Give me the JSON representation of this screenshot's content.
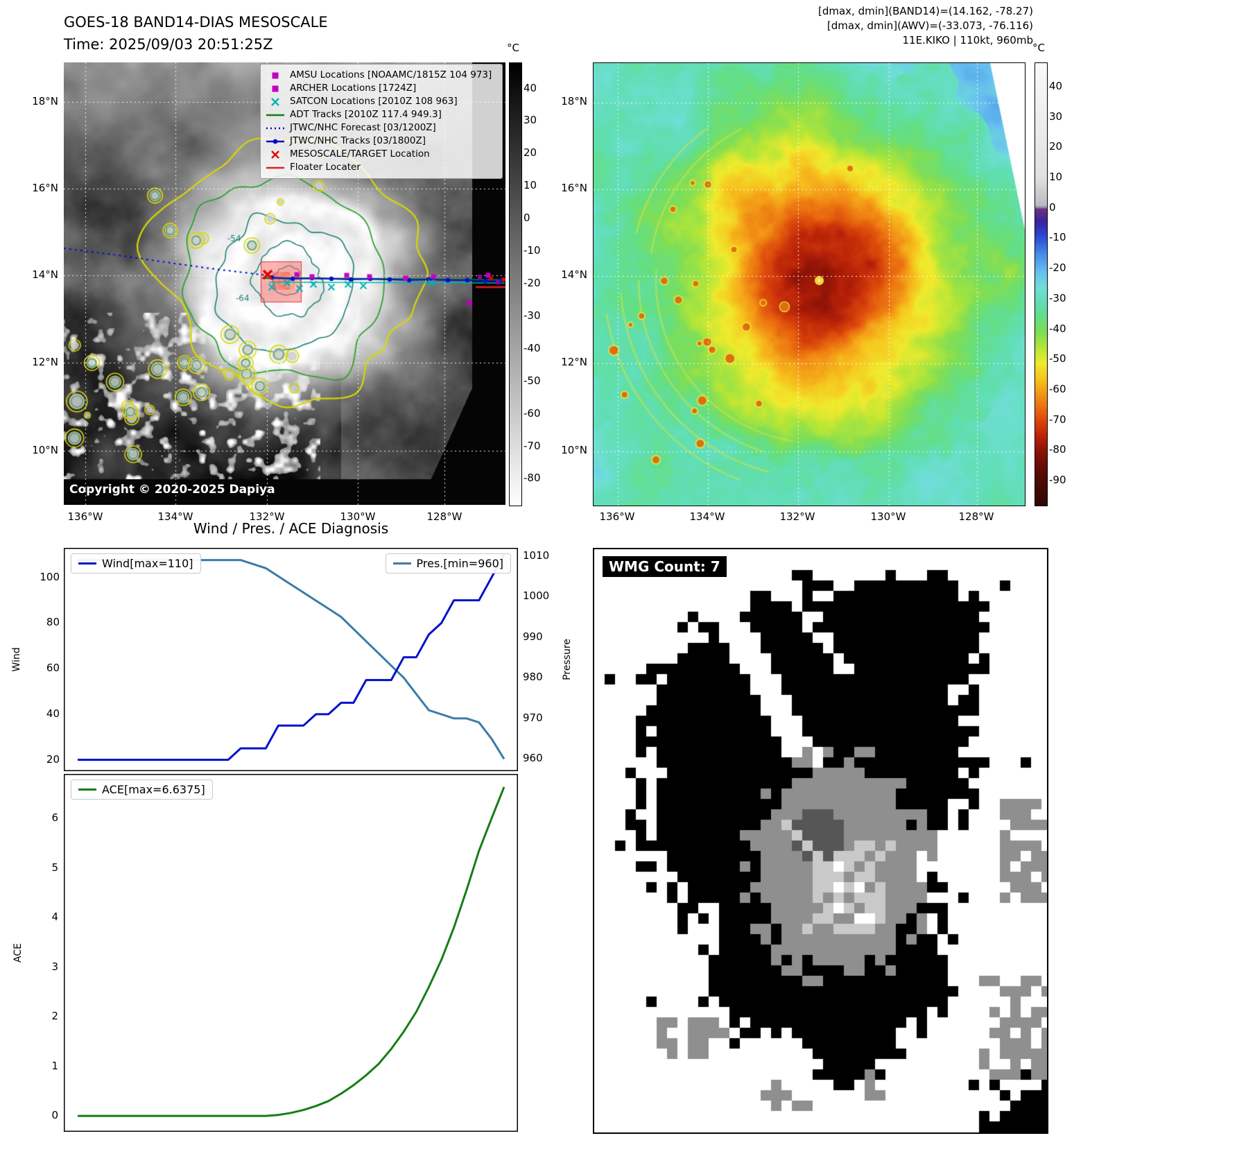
{
  "panel1": {
    "title": "GOES-18 BAND14-DIAS MESOSCALE",
    "time_line": "Time: 2025/09/03 20:51:25Z",
    "copyright": "Copyright © 2020-2025 Dapiya",
    "colorbar_unit": "°C",
    "colorbar_ticks": [
      40,
      30,
      20,
      10,
      0,
      -10,
      -20,
      -30,
      -40,
      -50,
      -60,
      -70,
      -80
    ],
    "lat_ticks": [
      "18°N",
      "16°N",
      "14°N",
      "12°N",
      "10°N"
    ],
    "lon_ticks": [
      "136°W",
      "134°W",
      "132°W",
      "130°W",
      "128°W"
    ],
    "contour_labels": [
      {
        "text": "-54"
      },
      {
        "text": "-64"
      }
    ],
    "legend": [
      {
        "label": "AMSU Locations [NOAAMC/1815Z 104 973]",
        "marker": "square",
        "color": "#c400c4"
      },
      {
        "label": "ARCHER Locations [1724Z]",
        "marker": "square",
        "color": "#c400c4"
      },
      {
        "label": "SATCON Locations [2010Z 108 963]",
        "marker": "x",
        "color": "#00b4b4"
      },
      {
        "label": "ADT Tracks [2010Z 117.4 949.3]",
        "marker": "line",
        "color": "#0f7d0f"
      },
      {
        "label": "JTWC/NHC Forecast [03/1200Z]",
        "marker": "dotted",
        "color": "#0000cd"
      },
      {
        "label": "JTWC/NHC Tracks [03/1800Z]",
        "marker": "line-dot",
        "color": "#0000cd"
      },
      {
        "label": "MESOSCALE/TARGET Location",
        "marker": "x",
        "color": "#e00000"
      },
      {
        "label": "Floater Locater",
        "marker": "line",
        "color": "#e02020"
      }
    ]
  },
  "panel2": {
    "header_lines": [
      "[dmax, dmin](BAND14)=(14.162, -78.27)",
      "[dmax, dmin](AWV)=(-33.073, -76.116)",
      "11E.KIKO | 110kt, 960mb"
    ],
    "colorbar_unit": "°C",
    "colorbar_ticks": [
      40,
      30,
      20,
      10,
      0,
      -10,
      -20,
      -30,
      -40,
      -50,
      -60,
      -70,
      -80,
      -90
    ],
    "lat_ticks": [
      "18°N",
      "16°N",
      "14°N",
      "12°N",
      "10°N"
    ],
    "lon_ticks": [
      "136°W",
      "134°W",
      "132°W",
      "130°W",
      "128°W"
    ]
  },
  "diagnosis": {
    "title": "Wind / Pres. / ACE Diagnosis",
    "wind_legend": "Wind[max=110]",
    "pres_legend": "Pres.[min=960]",
    "ace_legend": "ACE[max=6.6375]",
    "ylabel_wind": "Wind",
    "ylabel_pressure": "Pressure",
    "ylabel_ace": "ACE"
  },
  "panel4": {
    "label": "WMG Count: 7"
  },
  "chart_data": [
    {
      "type": "line",
      "title": "Wind / Pres. / ACE Diagnosis",
      "x": "track point index (time ordered)",
      "series": [
        {
          "name": "Wind[max=110]",
          "yaxis": "left",
          "color": "#0012c8",
          "values": [
            20,
            20,
            20,
            20,
            20,
            20,
            20,
            20,
            20,
            20,
            20,
            20,
            20,
            25,
            25,
            25,
            35,
            35,
            35,
            40,
            40,
            45,
            45,
            55,
            55,
            55,
            65,
            65,
            75,
            80,
            90,
            90,
            90,
            100,
            110
          ]
        },
        {
          "name": "Pres.[min=960]",
          "yaxis": "right",
          "color": "#3a7ca8",
          "values": [
            1009,
            1009,
            1009,
            1009,
            1009,
            1009,
            1009,
            1009,
            1009,
            1009,
            1009,
            1009,
            1009,
            1009,
            1008,
            1007,
            1005,
            1003,
            1001,
            999,
            997,
            995,
            992,
            989,
            986,
            983,
            980,
            976,
            972,
            971,
            970,
            970,
            969,
            965,
            960
          ]
        }
      ],
      "ylabel_left": "Wind",
      "yticks_left": [
        20,
        40,
        60,
        80,
        100
      ],
      "ylim_left": [
        15,
        113
      ],
      "ylabel_right": "Pressure",
      "yticks_right": [
        960,
        970,
        980,
        990,
        1000,
        1010
      ],
      "ylim_right": [
        957,
        1012
      ],
      "grid": false,
      "legend": [
        "top-left",
        "top-right"
      ]
    },
    {
      "type": "line",
      "x": "track point index (time ordered)",
      "series": [
        {
          "name": "ACE[max=6.6375]",
          "color": "#177d17",
          "values": [
            0,
            0,
            0,
            0,
            0,
            0,
            0,
            0,
            0,
            0,
            0,
            0,
            0,
            0,
            0,
            0,
            0.02,
            0.06,
            0.12,
            0.2,
            0.3,
            0.45,
            0.62,
            0.82,
            1.05,
            1.35,
            1.7,
            2.1,
            2.6,
            3.15,
            3.8,
            4.55,
            5.35,
            6.0,
            6.6375
          ]
        }
      ],
      "ylabel": "ACE",
      "yticks": [
        0,
        1,
        2,
        3,
        4,
        5,
        6
      ],
      "ylim": [
        -0.32,
        6.9
      ],
      "grid": false,
      "legend": [
        "top-left"
      ]
    }
  ]
}
